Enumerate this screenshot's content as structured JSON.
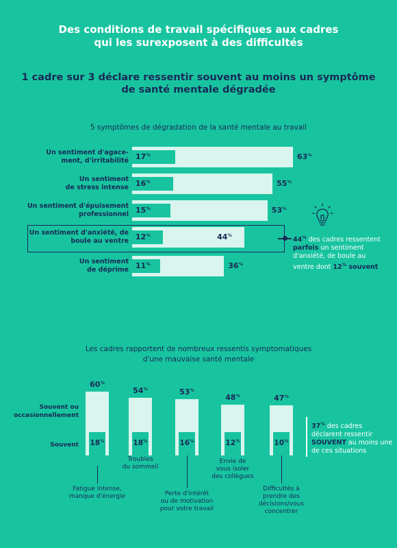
{
  "main_title": "Des conditions de travail spécifiques aux cadres\nqui les surexposent à des difficultés",
  "headline": "1 cadre sur 3 déclare ressentir souvent au moins un symptôme\nde santé mentale dégradée",
  "colors": {
    "background": "#18c4a0",
    "light_bar": "#d9f5ee",
    "navy": "#172a55"
  },
  "icons": [
    "lightbulb-icon"
  ],
  "chart_data": [
    {
      "type": "bar",
      "orientation": "horizontal",
      "title": "5 symptômes de dégradation de la santé mentale au travail",
      "categories": [
        "Un sentiment d'agace-\nment, d'irritabilité",
        "Un sentiment\nde stress intense",
        "Un sentiment d'épuisement\nprofessionnel",
        "Un sentiment d'anxiété, de\nboule au ventre",
        "Un sentiment\nde déprime"
      ],
      "series": [
        {
          "values": [
            63,
            55,
            53,
            44,
            36
          ]
        },
        {
          "values": [
            17,
            16,
            15,
            12,
            11
          ]
        }
      ],
      "unit": "%",
      "highlight_index": 3,
      "annotation": {
        "parts": [
          {
            "text": "44",
            "bold": true
          },
          {
            "text": "%",
            "bold": true,
            "sup": true
          },
          {
            "text": " des cadres ressentent ",
            "bold": false
          },
          {
            "text": "parfois",
            "bold": true
          },
          {
            "text": " un sentiment d'anxiété, de boule au ventre dont ",
            "bold": false
          },
          {
            "text": "12",
            "bold": true
          },
          {
            "text": "%",
            "bold": true,
            "sup": true
          },
          {
            "text": " souvent",
            "bold": true
          }
        ]
      }
    },
    {
      "type": "bar",
      "orientation": "vertical",
      "title": "Les cadres rapportent de nombreux ressentis symptomatiques\nd'une mauvaise santé mentale",
      "row_labels": [
        "Souvent ou\noccasionnellement",
        "Souvent"
      ],
      "categories": [
        "Fatigue intense,\nmanque d'énergie",
        "Troubles\ndu sommeil",
        "Perte d'intérêt\nou de motivation\npour votre travail",
        "Envie de\nvous isoler\ndes collègues",
        "Difficultés à\nprendre des\ndécisions/vous\nconcentrer"
      ],
      "series": [
        {
          "values": [
            60,
            54,
            53,
            48,
            47
          ]
        },
        {
          "values": [
            18,
            18,
            16,
            12,
            10
          ]
        }
      ],
      "unit": "%",
      "annotation": {
        "parts": [
          {
            "text": "37",
            "bold": true
          },
          {
            "text": "%",
            "bold": true,
            "sup": true
          },
          {
            "text": " des cadres déclarent ressentir ",
            "bold": false
          },
          {
            "text": "SOUVENT",
            "bold": true
          },
          {
            "text": " au moins une de ces situations",
            "bold": false
          }
        ]
      }
    }
  ]
}
